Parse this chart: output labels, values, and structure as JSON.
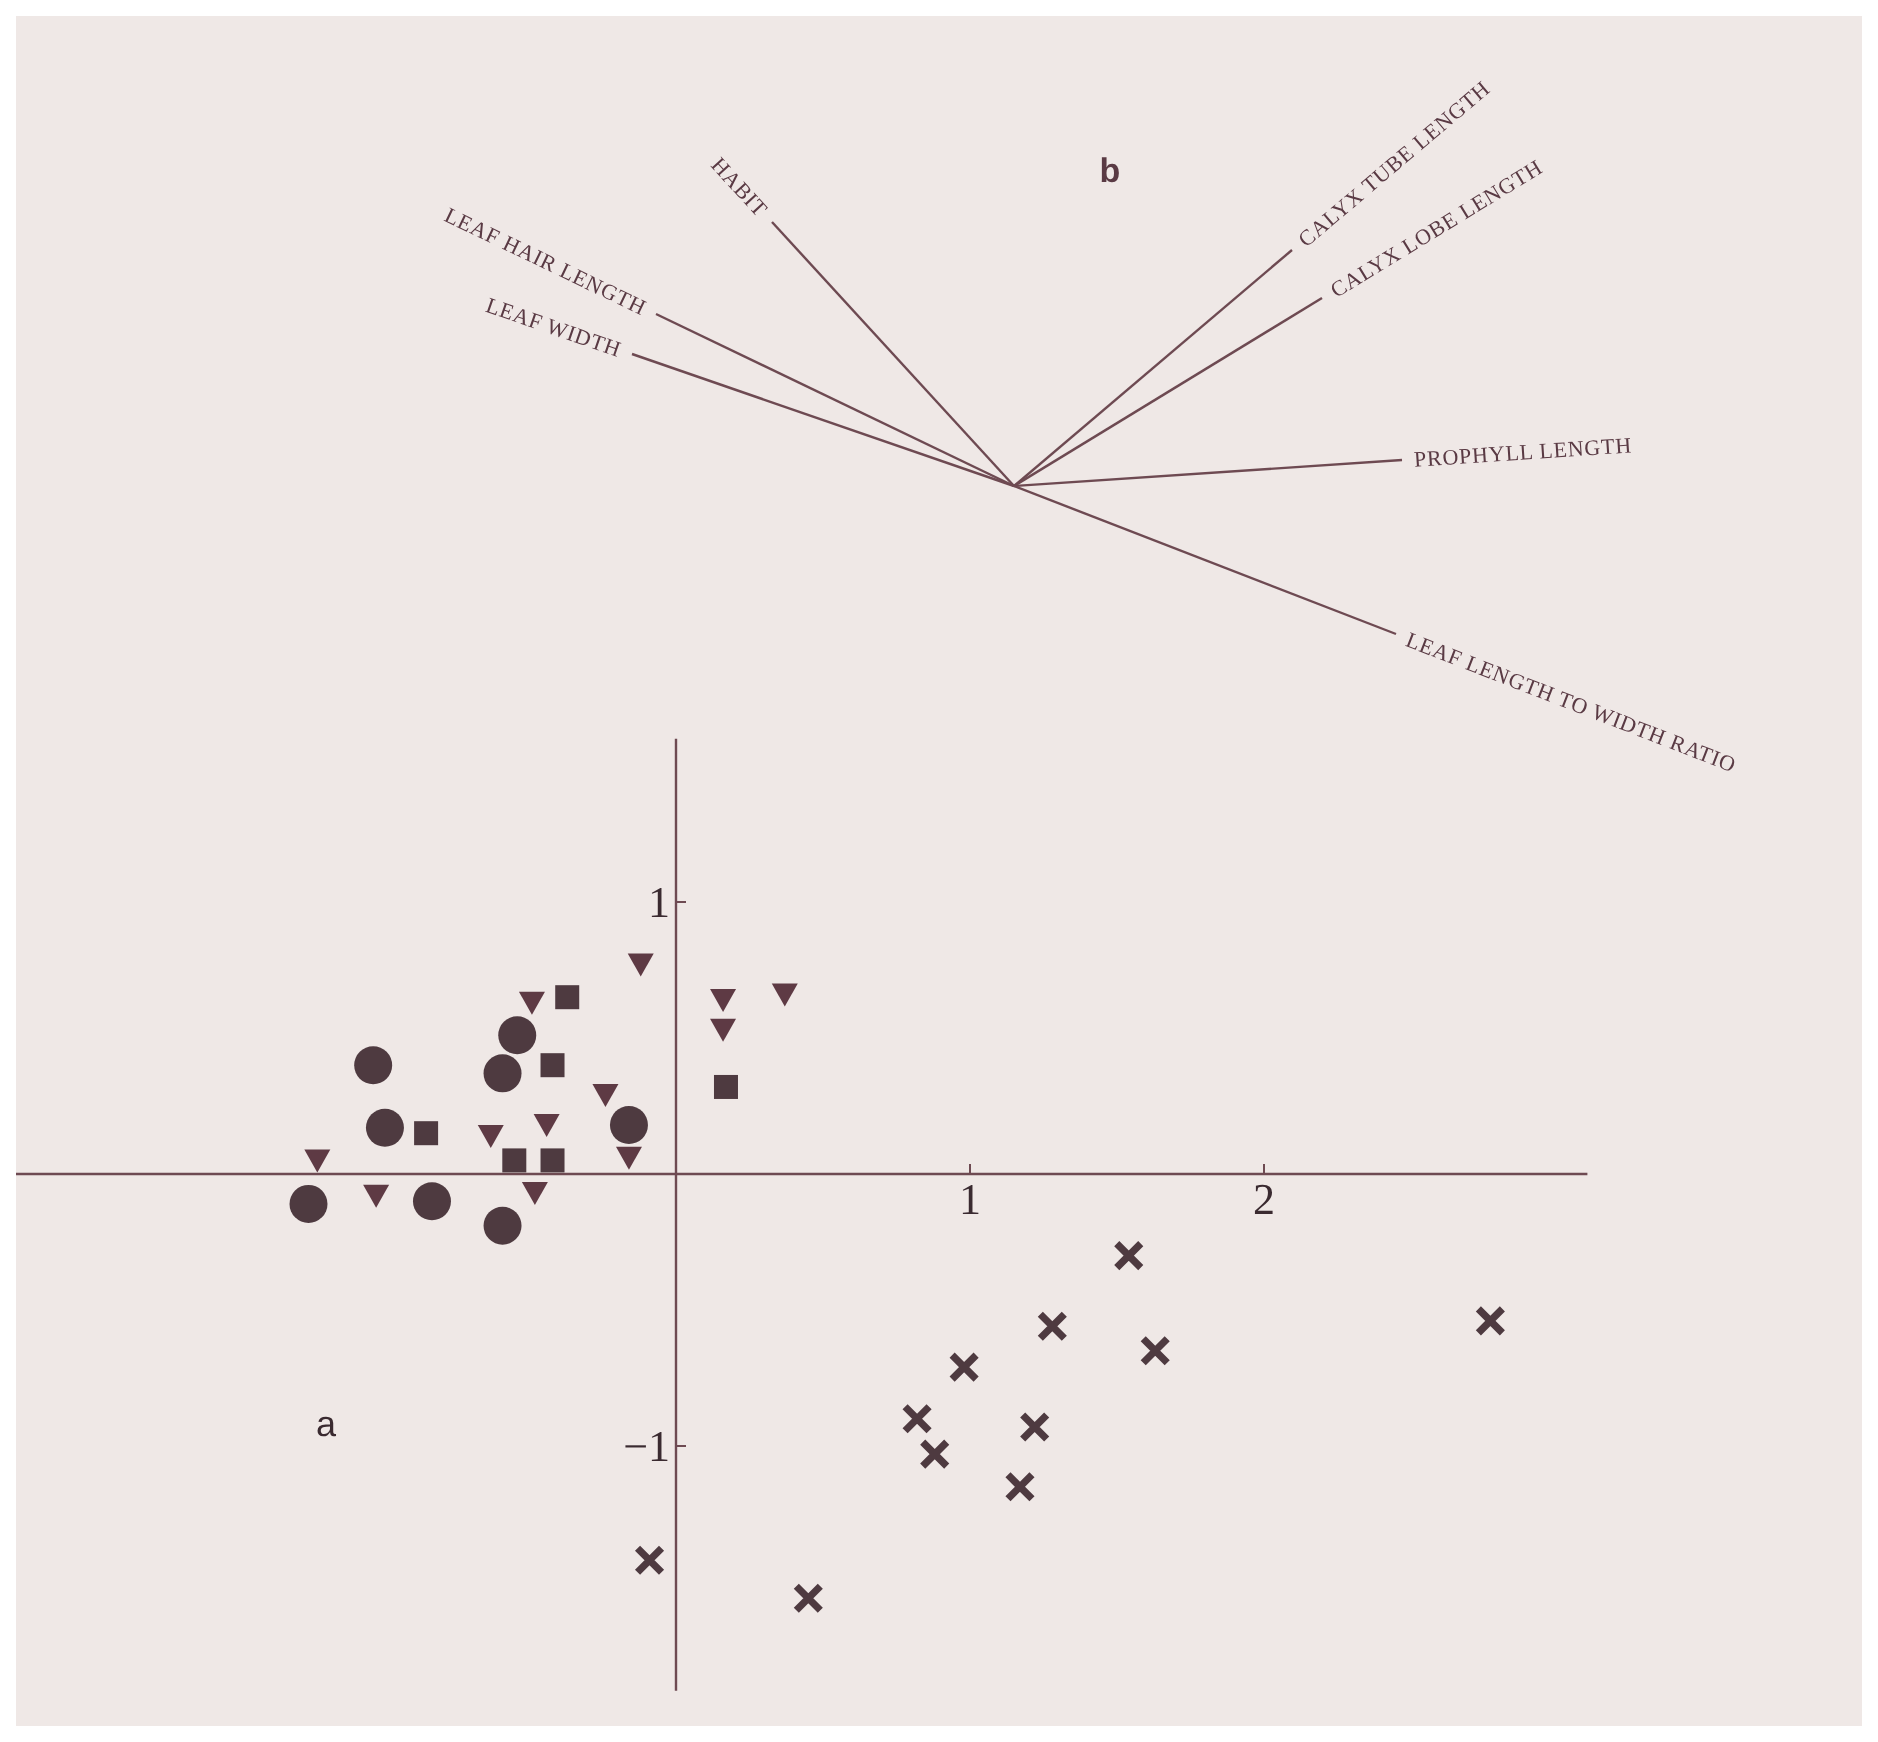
{
  "chart_data": [
    {
      "type": "other",
      "title": "b",
      "annotations": [
        "HABIT",
        "LEAF HAIR LENGTH",
        "LEAF WIDTH",
        "CALYX TUBE LENGTH",
        "CALYX LOBE LENGTH",
        "PROPHYLL LENGTH",
        "LEAF LENGTH TO WIDTH RATIO"
      ]
    },
    {
      "type": "scatter",
      "title": "a",
      "xlim": [
        -2.3,
        3.1
      ],
      "ylim": [
        -1.9,
        1.6
      ],
      "xticks": [
        1,
        2
      ],
      "yticks": [
        {
          "value": -1,
          "label": "−1"
        },
        1
      ],
      "series": [
        {
          "color": "#4e3a40",
          "marker": "circle",
          "x": [
            -1.03,
            -0.99,
            -1.25,
            -0.83,
            -0.54,
            -0.59,
            -0.59,
            -0.16
          ],
          "values": [
            0.4,
            0.17,
            -0.11,
            -0.1,
            0.51,
            0.37,
            -0.19,
            0.18
          ]
        },
        {
          "color": "#4e3a40",
          "marker": "square",
          "x": [
            -0.85,
            -0.37,
            -0.42,
            -0.55,
            -0.42,
            0.17
          ],
          "values": [
            0.15,
            0.65,
            0.4,
            0.05,
            0.05,
            0.32
          ]
        },
        {
          "color": "#5e3a44",
          "marker": "triangle",
          "x": [
            -1.22,
            -1.02,
            -0.49,
            -0.63,
            -0.44,
            -0.48,
            -0.24,
            -0.16,
            -0.12,
            0.16,
            0.16,
            0.37
          ],
          "values": [
            0.05,
            -0.08,
            0.63,
            0.14,
            0.18,
            -0.07,
            0.29,
            0.06,
            0.77,
            0.64,
            0.53,
            0.66
          ]
        },
        {
          "color": "#4e3a40",
          "marker": "cross",
          "x": [
            1.54,
            1.28,
            1.63,
            2.77,
            0.98,
            0.82,
            0.88,
            1.22,
            1.17,
            -0.09,
            0.45
          ],
          "values": [
            -0.3,
            -0.56,
            -0.65,
            -0.54,
            -0.71,
            -0.9,
            -1.03,
            -0.93,
            -1.15,
            -1.42,
            -1.56
          ]
        }
      ]
    }
  ]
}
